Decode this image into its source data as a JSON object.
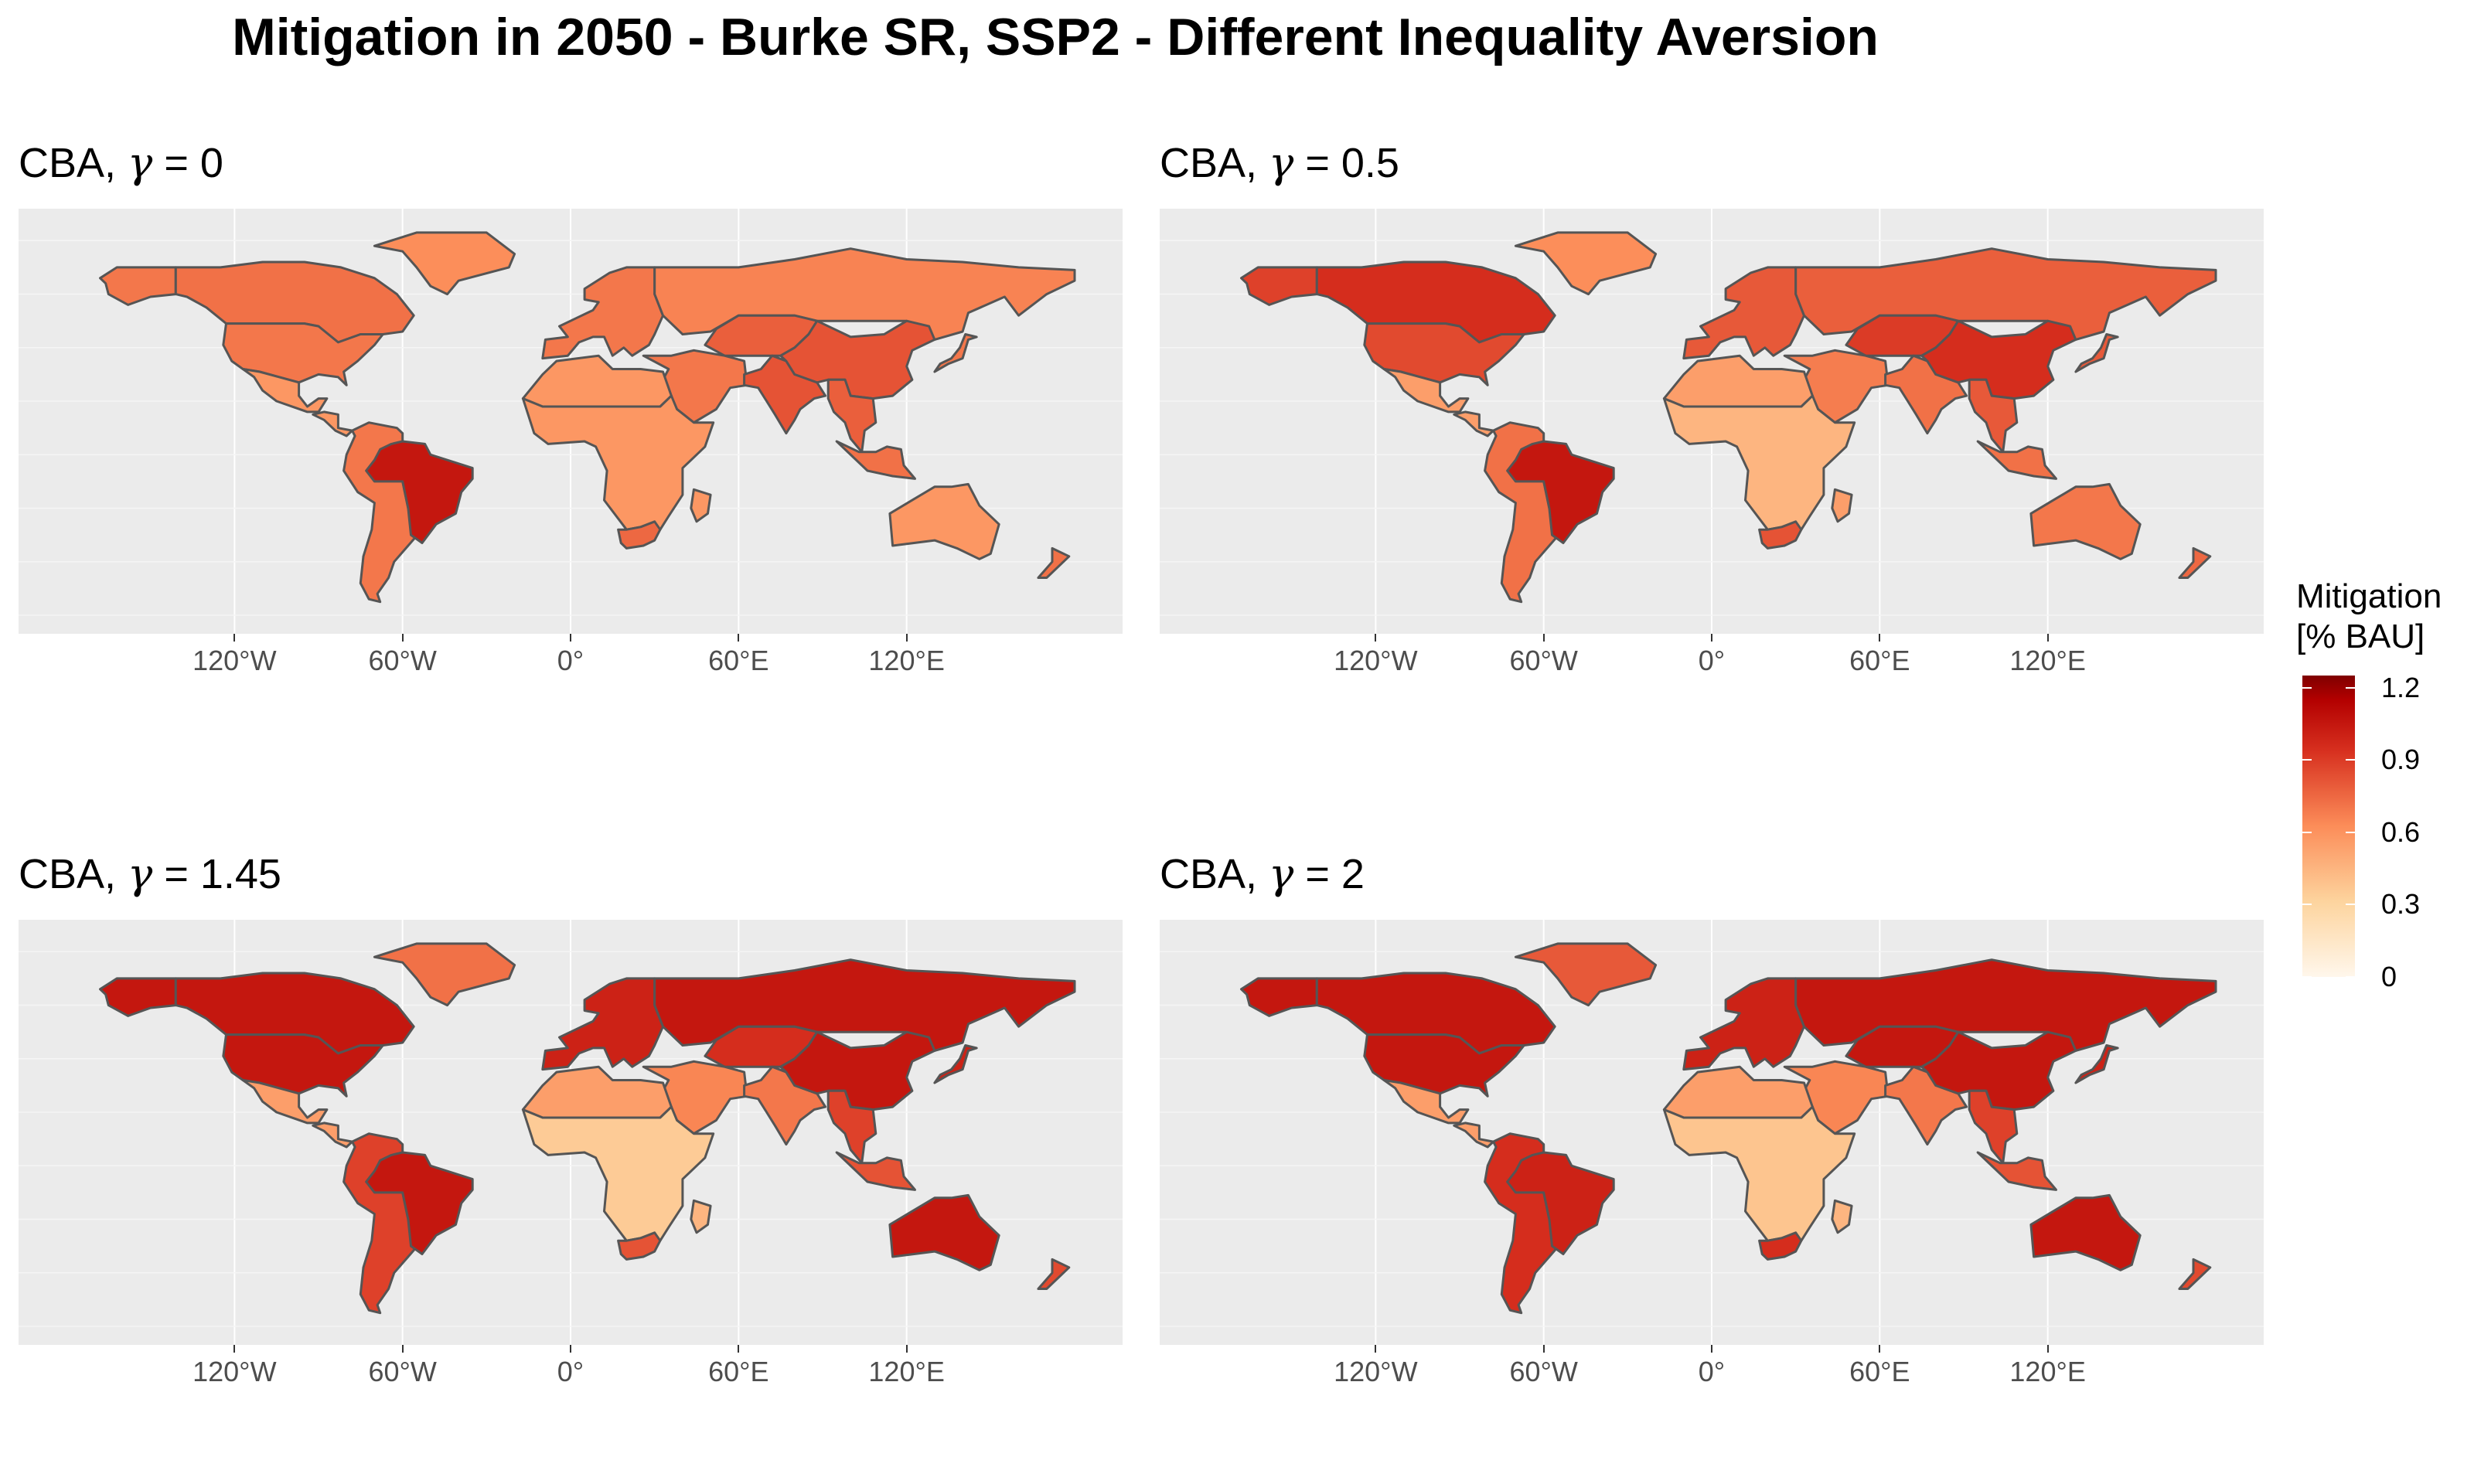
{
  "title": "Mitigation in 2050 - Burke SR, SSP2 - Different Inequality Aversion",
  "legend": {
    "title_line1": "Mitigation",
    "title_line2": "[% BAU]",
    "ticks": [
      {
        "value": 1.2,
        "label": "1.2"
      },
      {
        "value": 0.9,
        "label": "0.9"
      },
      {
        "value": 0.6,
        "label": "0.6"
      },
      {
        "value": 0.3,
        "label": "0.3"
      },
      {
        "value": 0,
        "label": "0"
      }
    ],
    "range": [
      0,
      1.25
    ],
    "palette": [
      "#fff7ec",
      "#fdd49e",
      "#fc8d59",
      "#d7301f",
      "#b30000",
      "#7f0000"
    ]
  },
  "x_ticks": [
    "120°W",
    "60°W",
    "0°",
    "60°E",
    "120°E"
  ],
  "x_tick_values": [
    -120,
    -60,
    0,
    60,
    120
  ],
  "x_range": [
    -180,
    180
  ],
  "y_range": [
    -60,
    85
  ],
  "chart_data": {
    "type": "choropleth",
    "variable": "Mitigation [% BAU]",
    "facets": [
      {
        "label_prefix": "CBA, ",
        "gamma_symbol": "γ",
        "equals": " = ",
        "gamma_value": "0",
        "regions": {
          "canada": 0.72,
          "usa": 0.7,
          "mexico": 0.58,
          "greenland": 0.62,
          "alaska": 0.7,
          "central_america": 0.58,
          "brazil": 1.05,
          "south_america": 0.7,
          "europe": 0.7,
          "russia": 0.66,
          "central_asia": 0.78,
          "middle_east": 0.7,
          "north_africa": 0.58,
          "africa": 0.58,
          "south_africa": 0.75,
          "madagascar": 0.58,
          "india": 0.82,
          "china": 0.82,
          "southeast_asia": 0.78,
          "japan": 0.7,
          "indonesia": 0.72,
          "australia": 0.58,
          "new_zealand": 0.72
        }
      },
      {
        "label_prefix": "CBA, ",
        "gamma_symbol": "γ",
        "equals": " = ",
        "gamma_value": "0.5",
        "regions": {
          "canada": 0.95,
          "usa": 0.85,
          "mexico": 0.55,
          "greenland": 0.62,
          "alaska": 0.88,
          "central_america": 0.55,
          "brazil": 1.05,
          "south_america": 0.72,
          "europe": 0.8,
          "russia": 0.78,
          "central_asia": 0.9,
          "middle_east": 0.68,
          "north_africa": 0.55,
          "africa": 0.45,
          "south_africa": 0.82,
          "madagascar": 0.55,
          "india": 0.72,
          "china": 0.95,
          "southeast_asia": 0.8,
          "japan": 0.8,
          "indonesia": 0.72,
          "australia": 0.7,
          "new_zealand": 0.75
        }
      },
      {
        "label_prefix": "CBA, ",
        "gamma_symbol": "γ",
        "equals": " = ",
        "gamma_value": "1.45",
        "regions": {
          "canada": 1.05,
          "usa": 1.05,
          "mexico": 0.55,
          "greenland": 0.72,
          "alaska": 1.05,
          "central_america": 0.55,
          "brazil": 1.05,
          "south_america": 0.88,
          "europe": 1.0,
          "russia": 1.05,
          "central_asia": 0.95,
          "middle_east": 0.65,
          "north_africa": 0.55,
          "africa": 0.35,
          "south_africa": 0.82,
          "madagascar": 0.45,
          "india": 0.7,
          "china": 1.05,
          "southeast_asia": 0.88,
          "japan": 1.0,
          "indonesia": 0.82,
          "australia": 1.05,
          "new_zealand": 0.85
        }
      },
      {
        "label_prefix": "CBA, ",
        "gamma_symbol": "γ",
        "equals": " = ",
        "gamma_value": "2",
        "regions": {
          "canada": 1.05,
          "usa": 1.05,
          "mexico": 0.55,
          "greenland": 0.8,
          "alaska": 1.05,
          "central_america": 0.55,
          "brazil": 1.0,
          "south_america": 0.95,
          "europe": 1.0,
          "russia": 1.05,
          "central_asia": 1.05,
          "middle_east": 0.65,
          "north_africa": 0.55,
          "africa": 0.38,
          "south_africa": 0.95,
          "madagascar": 0.45,
          "india": 0.7,
          "china": 1.05,
          "southeast_asia": 0.88,
          "japan": 1.0,
          "indonesia": 0.82,
          "australia": 1.05,
          "new_zealand": 0.85
        }
      }
    ]
  }
}
